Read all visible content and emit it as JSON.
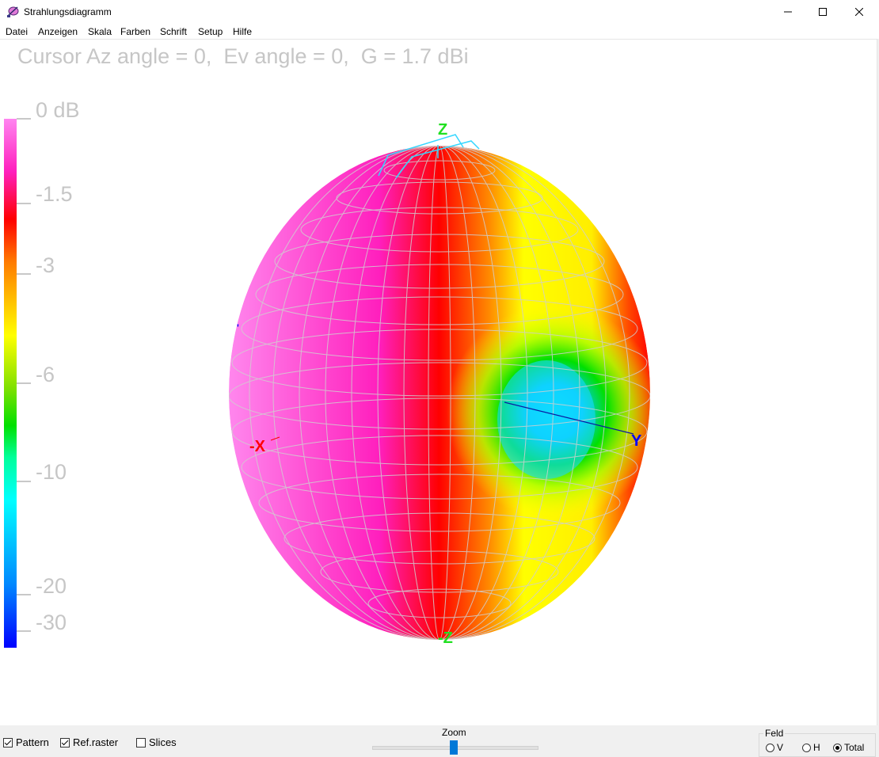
{
  "window": {
    "title": "Strahlungsdiagramm"
  },
  "menu": [
    "Datei",
    "Anzeigen",
    "Skala",
    "Farben",
    "Schrift",
    "Setup",
    "Hilfe"
  ],
  "cursor_info": "Cursor Az angle = 0,  Ev angle = 0,  G = 1.7 dBi",
  "color_scale": {
    "ticks": [
      "0 dB",
      "-1.5",
      "-3",
      "-6",
      "-10",
      "-20",
      "-30"
    ]
  },
  "axes": {
    "z": "Z",
    "neg_z": "-Z",
    "neg_x": "-X",
    "y": "Y"
  },
  "bottom": {
    "pattern_label": "Pattern",
    "pattern_checked": true,
    "refraster_label": "Ref.raster",
    "refraster_checked": true,
    "slices_label": "Slices",
    "slices_checked": false,
    "zoom_label": "Zoom",
    "feld_label": "Feld",
    "feld_options": [
      "V",
      "H",
      "Total"
    ],
    "feld_selected": "Total"
  }
}
